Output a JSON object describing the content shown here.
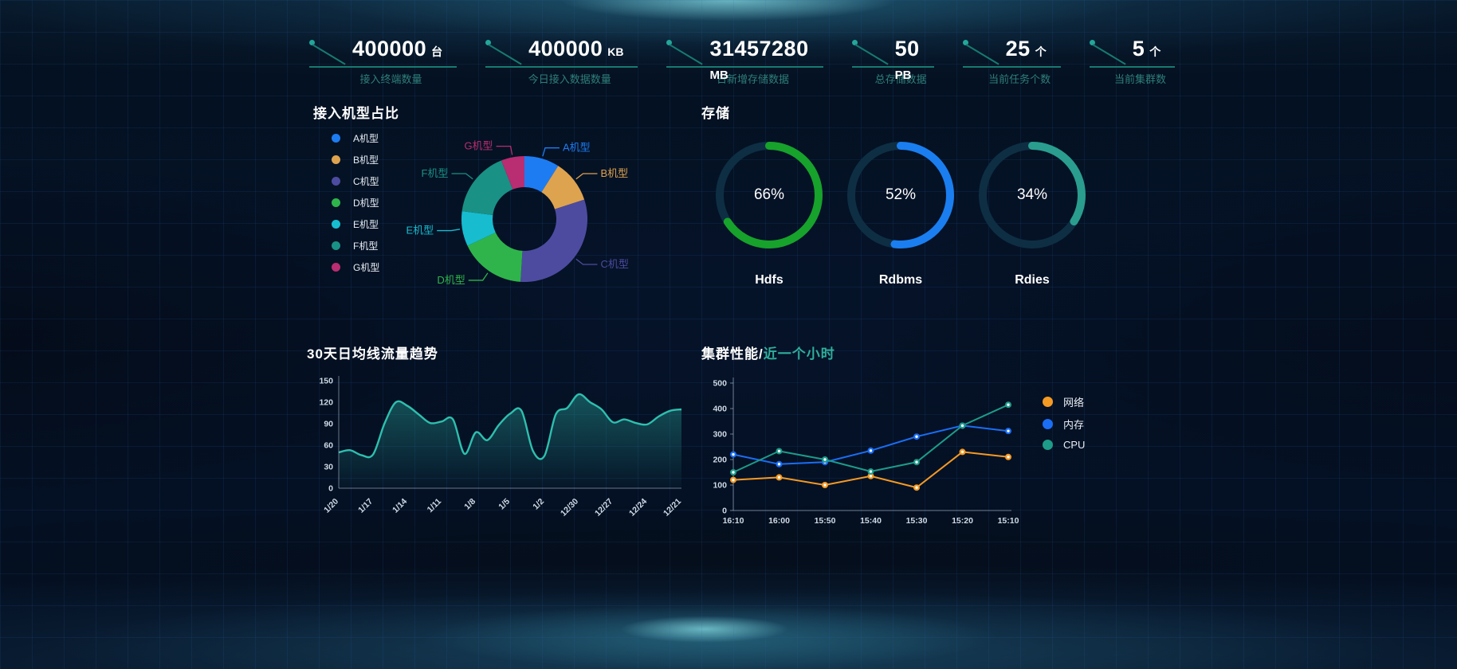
{
  "kpis": [
    {
      "value": "400000",
      "unit": "台",
      "label": "接入终端数量",
      "unit_below": false
    },
    {
      "value": "400000",
      "unit": "KB",
      "label": "今日接入数据数量",
      "unit_below": false
    },
    {
      "value": "31457280",
      "unit": "MB",
      "label": "日新增存储数据",
      "unit_below": true
    },
    {
      "value": "50",
      "unit": "PB",
      "label": "总存储数据",
      "unit_below": true
    },
    {
      "value": "25",
      "unit": "个",
      "label": "当前任务个数",
      "unit_below": false
    },
    {
      "value": "5",
      "unit": "个",
      "label": "当前集群数",
      "unit_below": false
    }
  ],
  "sections": {
    "machine": {
      "title": "接入机型占比"
    },
    "storage": {
      "title": "存储"
    },
    "traffic": {
      "title": "30天日均线流量趋势"
    },
    "cluster": {
      "title": "集群性能/",
      "subtitle": "近一个小时"
    }
  },
  "chart_data": [
    {
      "id": "machine_donut",
      "type": "pie",
      "donut": true,
      "title": "接入机型占比",
      "legend_position": "left",
      "categories": [
        "A机型",
        "B机型",
        "C机型",
        "D机型",
        "E机型",
        "F机型",
        "G机型"
      ],
      "values": [
        9,
        11,
        31,
        17,
        9,
        17,
        6
      ],
      "colors": [
        "#1e7cf2",
        "#dea34f",
        "#4d4ba0",
        "#2fb44b",
        "#17bccf",
        "#1a9185",
        "#b92d72"
      ]
    },
    {
      "id": "storage_rings",
      "type": "pie",
      "style": "progress-ring",
      "title": "存储",
      "unit": "%",
      "categories": [
        "Hdfs",
        "Rdbms",
        "Rdies"
      ],
      "values": [
        66,
        52,
        34
      ],
      "colors": [
        "#17a22b",
        "#1a7ef0",
        "#2a9d8f"
      ],
      "track_color": "#0e2e43"
    },
    {
      "id": "traffic_trend",
      "type": "area",
      "title": "30天日均线流量趋势",
      "color": "#2ebfae",
      "x_labels": [
        "1/20",
        "1/17",
        "1/14",
        "1/11",
        "1/8",
        "1/5",
        "1/2",
        "12/30",
        "12/27",
        "12/24",
        "12/21"
      ],
      "label_every": 3,
      "values": [
        50,
        53,
        46,
        47,
        90,
        120,
        115,
        103,
        91,
        93,
        96,
        48,
        78,
        67,
        88,
        104,
        108,
        52,
        45,
        103,
        112,
        131,
        120,
        110,
        92,
        96,
        91,
        89,
        100,
        108,
        110
      ],
      "ylim": [
        0,
        150
      ],
      "yticks": [
        0,
        30,
        60,
        90,
        120,
        150
      ],
      "grid": false
    },
    {
      "id": "cluster_perf",
      "type": "line",
      "title": "集群性能/",
      "subtitle": "近一个小时",
      "legend_position": "right",
      "categories": [
        "16:10",
        "16:00",
        "15:50",
        "15:40",
        "15:30",
        "15:20",
        "15:10"
      ],
      "series": [
        {
          "name": "网络",
          "color": "#f59a23",
          "values": [
            120,
            130,
            100,
            135,
            90,
            230,
            210
          ]
        },
        {
          "name": "内存",
          "color": "#1a6ef5",
          "values": [
            220,
            182,
            190,
            235,
            290,
            333,
            312
          ]
        },
        {
          "name": "CPU",
          "color": "#1d9c8a",
          "values": [
            150,
            233,
            200,
            153,
            190,
            333,
            415
          ]
        }
      ],
      "ylim": [
        0,
        500
      ],
      "yticks": [
        0,
        100,
        200,
        300,
        400,
        500
      ],
      "grid": false
    }
  ],
  "colors": {
    "background": "#040e20",
    "accent_teal": "#177a70",
    "kpi_label": "#2e7f7a",
    "axis_text": "#cfdae6",
    "title": "#ffffff",
    "subtitle_teal": "#2fae9b"
  }
}
